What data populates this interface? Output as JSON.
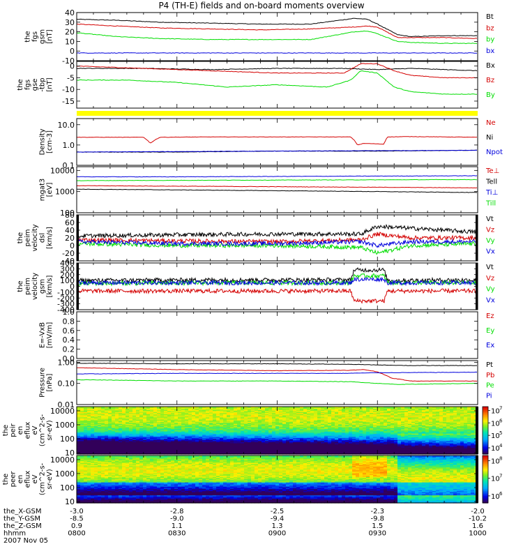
{
  "title": "P4 (TH-E) fields and on-board moments overview",
  "chart_data": [
    {
      "type": "line",
      "id": "gsm",
      "ylabel": [
        "the",
        "fgs",
        "gsm",
        "[nT]"
      ],
      "ylim": [
        -10,
        40
      ],
      "yticks": [
        {
          "v": 40,
          "label": "40"
        },
        {
          "v": 30,
          "label": "30"
        },
        {
          "v": 20,
          "label": "20"
        },
        {
          "v": 10,
          "label": "10"
        },
        {
          "v": 0,
          "label": "0"
        },
        {
          "v": -10,
          "label": "-10"
        }
      ],
      "series": [
        {
          "name": "Bt",
          "color": "#000000",
          "x": [
            0,
            12,
            25,
            40,
            55,
            70,
            83,
            87,
            90,
            96,
            100,
            110,
            120
          ],
          "values": [
            33,
            32,
            30,
            29,
            28,
            28,
            34,
            33,
            28,
            17,
            15,
            16,
            16
          ]
        },
        {
          "name": "bz",
          "color": "#d40000",
          "x": [
            0,
            12,
            25,
            40,
            55,
            70,
            83,
            87,
            90,
            96,
            100,
            110,
            120
          ],
          "values": [
            28,
            26,
            24,
            23,
            22,
            23,
            25,
            26,
            25,
            14,
            14,
            14,
            13
          ]
        },
        {
          "name": "by",
          "color": "#00dd00",
          "x": [
            0,
            12,
            25,
            40,
            55,
            70,
            83,
            87,
            90,
            96,
            100,
            110,
            120
          ],
          "values": [
            19,
            15,
            13,
            12,
            12,
            12,
            20,
            21,
            18,
            10,
            9,
            8,
            8
          ]
        },
        {
          "name": "bx",
          "color": "#0000dd",
          "x": [
            0,
            30,
            60,
            90,
            120
          ],
          "values": [
            -2,
            -2,
            -2,
            -2,
            -2
          ]
        }
      ]
    },
    {
      "type": "line",
      "id": "dsl",
      "ylabel": [
        "the",
        "fgs",
        "gse",
        "-tbp",
        "[nT]"
      ],
      "ylim": [
        -18,
        2
      ],
      "yticks": [
        {
          "v": 0,
          "label": "0"
        },
        {
          "v": -5,
          "label": "-5"
        },
        {
          "v": -10,
          "label": "-10"
        },
        {
          "v": -15,
          "label": "-15"
        }
      ],
      "series": [
        {
          "name": "Bx",
          "color": "#000000",
          "x": [
            0,
            20,
            40,
            60,
            80,
            90,
            100,
            120
          ],
          "values": [
            -1,
            -1,
            -1.5,
            -1,
            -1,
            -1.5,
            -1,
            -2
          ]
        },
        {
          "name": "Bz",
          "color": "#d40000",
          "x": [
            0,
            20,
            40,
            60,
            80,
            85,
            90,
            95,
            100,
            110,
            120
          ],
          "values": [
            0,
            -1,
            -2,
            -3,
            -3,
            1,
            1,
            -2,
            -4,
            -5,
            -5
          ]
        },
        {
          "name": "By",
          "color": "#00dd00",
          "x": [
            0,
            15,
            30,
            45,
            60,
            75,
            82,
            85,
            90,
            95,
            100,
            110,
            120
          ],
          "values": [
            -6,
            -6,
            -7,
            -9,
            -8,
            -9,
            -6,
            -2,
            -3,
            -9,
            -11,
            -12,
            -12
          ]
        }
      ]
    },
    {
      "type": "line",
      "id": "density",
      "scale": "log",
      "ylabel": [
        "Density",
        "[cm-3]"
      ],
      "ylim": [
        0.1,
        20
      ],
      "yticks": [
        {
          "v": 10,
          "label": "10.0"
        },
        {
          "v": 1,
          "label": "1.0"
        },
        {
          "v": 0.1,
          "label": "0.1"
        }
      ],
      "series": [
        {
          "name": "Ne",
          "color": "#d40000",
          "x": [
            0,
            20,
            22,
            25,
            40,
            60,
            82,
            84,
            86,
            92,
            93,
            100,
            120
          ],
          "values": [
            2.4,
            2.4,
            1.2,
            2.4,
            2.5,
            2.5,
            2.5,
            1.0,
            1.2,
            1.1,
            2.5,
            2.6,
            2.4
          ]
        },
        {
          "name": "Ni",
          "color": "#000000",
          "x": [
            0,
            30,
            60,
            90,
            120
          ],
          "values": [
            0.45,
            0.45,
            0.5,
            0.5,
            0.55
          ]
        },
        {
          "name": "Npot",
          "color": "#0000dd",
          "x": [
            0,
            60,
            120
          ],
          "values": [
            0.45,
            0.5,
            0.55
          ]
        }
      ]
    },
    {
      "type": "line",
      "id": "temperature",
      "scale": "log",
      "ylabel": [
        "mgat3",
        "[eV]"
      ],
      "ylim": [
        100,
        15000
      ],
      "yticks": [
        {
          "v": 10000,
          "label": "10000"
        },
        {
          "v": 1000,
          "label": "1000"
        },
        {
          "v": 100,
          "label": "100"
        }
      ],
      "series": [
        {
          "name": "Te⊥",
          "color": "#d40000",
          "x": [
            0,
            30,
            60,
            90,
            120
          ],
          "values": [
            1900,
            1800,
            1700,
            1600,
            1500
          ]
        },
        {
          "name": "Tell",
          "color": "#000000",
          "x": [
            0,
            30,
            60,
            90,
            120
          ],
          "values": [
            1300,
            1200,
            1100,
            1000,
            900
          ]
        },
        {
          "name": "Ti⊥",
          "color": "#0000dd",
          "x": [
            0,
            30,
            60,
            90,
            120
          ],
          "values": [
            5000,
            5000,
            5200,
            5400,
            5600
          ]
        },
        {
          "name": "Till",
          "color": "#00dd00",
          "x": [
            0,
            30,
            60,
            90,
            120
          ],
          "values": [
            3300,
            3400,
            3500,
            3600,
            3700
          ]
        }
      ]
    },
    {
      "type": "line",
      "id": "velocity-dsl",
      "noisy": true,
      "ylabel": [
        "the",
        "peim",
        "velocity",
        "dsl",
        "[km/s]"
      ],
      "ylim": [
        -40,
        80
      ],
      "yticks": [
        {
          "v": 80,
          "label": "80"
        },
        {
          "v": 60,
          "label": "60"
        },
        {
          "v": 40,
          "label": "40"
        },
        {
          "v": 20,
          "label": "20"
        },
        {
          "v": 0,
          "label": "0"
        },
        {
          "v": -20,
          "label": "-20"
        },
        {
          "v": -40,
          "label": "-40"
        }
      ],
      "series": [
        {
          "name": "Vt",
          "color": "#000000",
          "x": [
            0,
            30,
            60,
            85,
            90,
            100,
            120
          ],
          "values": [
            25,
            28,
            30,
            30,
            50,
            45,
            35
          ]
        },
        {
          "name": "Vz",
          "color": "#d40000",
          "x": [
            0,
            30,
            60,
            85,
            90,
            100,
            120
          ],
          "values": [
            15,
            12,
            10,
            15,
            30,
            20,
            20
          ]
        },
        {
          "name": "Vy",
          "color": "#00dd00",
          "x": [
            0,
            30,
            60,
            85,
            90,
            100,
            120
          ],
          "values": [
            5,
            0,
            0,
            -5,
            -20,
            0,
            5
          ]
        },
        {
          "name": "Vx",
          "color": "#0000dd",
          "x": [
            0,
            30,
            60,
            85,
            90,
            100,
            120
          ],
          "values": [
            10,
            5,
            5,
            10,
            0,
            10,
            10
          ]
        }
      ]
    },
    {
      "type": "line",
      "id": "velocity-gsm",
      "noisy": true,
      "ylabel": [
        "the",
        "peim",
        "velocity",
        "gsm",
        "[km/s]"
      ],
      "ylim": [
        -400,
        400
      ],
      "yticks": [
        {
          "v": 400,
          "label": "400"
        },
        {
          "v": 300,
          "label": "300"
        },
        {
          "v": 200,
          "label": "200"
        },
        {
          "v": 100,
          "label": "100"
        },
        {
          "v": 0,
          "label": "0"
        },
        {
          "v": -100,
          "label": "-100"
        },
        {
          "v": -200,
          "label": "-200"
        },
        {
          "v": -300,
          "label": "-300"
        },
        {
          "v": -400,
          "label": "-400"
        }
      ],
      "series": [
        {
          "name": "Vt",
          "color": "#000000",
          "x": [
            0,
            40,
            82,
            83,
            92,
            93,
            120
          ],
          "values": [
            100,
            110,
            110,
            280,
            280,
            100,
            110
          ]
        },
        {
          "name": "Vz",
          "color": "#d40000",
          "x": [
            0,
            40,
            82,
            83,
            92,
            93,
            120
          ],
          "values": [
            -80,
            -80,
            -80,
            -250,
            -250,
            -80,
            -80
          ]
        },
        {
          "name": "Vy",
          "color": "#00dd00",
          "x": [
            0,
            40,
            82,
            83,
            92,
            93,
            120
          ],
          "values": [
            50,
            60,
            60,
            180,
            180,
            60,
            60
          ]
        },
        {
          "name": "Vx",
          "color": "#0000dd",
          "x": [
            0,
            40,
            82,
            83,
            92,
            93,
            120
          ],
          "values": [
            60,
            60,
            60,
            120,
            120,
            60,
            60
          ]
        }
      ]
    },
    {
      "type": "line",
      "id": "efield",
      "ylabel": [
        "E=-VxB",
        "[mV/m]"
      ],
      "ylim": [
        0,
        1
      ],
      "yticks": [
        {
          "v": 1,
          "label": "1.0"
        },
        {
          "v": 0.8,
          "label": "0.8"
        },
        {
          "v": 0.6,
          "label": "0.6"
        },
        {
          "v": 0.4,
          "label": "0.4"
        },
        {
          "v": 0.2,
          "label": "0.2"
        },
        {
          "v": 0,
          "label": "0.0"
        }
      ],
      "series": [
        {
          "name": "Ez",
          "color": "#d40000",
          "x": [],
          "values": []
        },
        {
          "name": "Ey",
          "color": "#00dd00",
          "x": [],
          "values": []
        },
        {
          "name": "Ex",
          "color": "#0000dd",
          "x": [],
          "values": []
        }
      ]
    },
    {
      "type": "line",
      "id": "pressure",
      "scale": "log",
      "ylabel": [
        "Pressure",
        "[nPa]"
      ],
      "ylim": [
        0.01,
        1.2
      ],
      "yticks": [
        {
          "v": 1,
          "label": "1.00"
        },
        {
          "v": 0.1,
          "label": "0.10"
        },
        {
          "v": 0.01,
          "label": "0.01"
        }
      ],
      "series": [
        {
          "name": "Pt",
          "color": "#000000",
          "x": [
            0,
            30,
            60,
            82,
            90,
            100,
            120
          ],
          "values": [
            0.9,
            0.85,
            0.85,
            0.8,
            0.75,
            0.7,
            0.7
          ]
        },
        {
          "name": "Pb",
          "color": "#d40000",
          "x": [
            0,
            30,
            60,
            82,
            86,
            90,
            94,
            100,
            120
          ],
          "values": [
            0.55,
            0.45,
            0.4,
            0.42,
            0.45,
            0.35,
            0.18,
            0.13,
            0.13
          ]
        },
        {
          "name": "Pe",
          "color": "#00dd00",
          "x": [
            0,
            30,
            60,
            82,
            90,
            96,
            120
          ],
          "values": [
            0.15,
            0.13,
            0.13,
            0.12,
            0.1,
            0.09,
            0.1
          ]
        },
        {
          "name": "Pi",
          "color": "#0000dd",
          "x": [
            0,
            30,
            60,
            80,
            90,
            120
          ],
          "values": [
            0.28,
            0.3,
            0.3,
            0.3,
            0.32,
            0.34
          ]
        }
      ]
    },
    {
      "type": "heatmap",
      "id": "ion-spectrogram",
      "ylabel": [
        "the",
        "peir",
        "en",
        "eflux",
        "eV",
        "(cm^2-s-",
        "sr-eV)"
      ],
      "ylim": [
        8,
        20000
      ],
      "yticks": [
        {
          "v": 10000,
          "label": "10000"
        },
        {
          "v": 1000,
          "label": "1000"
        },
        {
          "v": 100,
          "label": "100"
        },
        {
          "v": 10,
          "label": "10"
        }
      ],
      "colorbar": {
        "ticks": [
          {
            "exp": 7,
            "label": "7"
          },
          {
            "exp": 6,
            "label": "6"
          },
          {
            "exp": 5,
            "label": "5"
          },
          {
            "exp": 4,
            "label": "4"
          }
        ],
        "range": [
          3.5,
          7.3
        ]
      }
    },
    {
      "type": "heatmap",
      "id": "electron-spectrogram",
      "ylabel": [
        "the",
        "peer",
        "en",
        "eflux",
        "eV",
        "(cm^2-s-",
        "sr-eV)"
      ],
      "ylim": [
        8,
        20000
      ],
      "yticks": [
        {
          "v": 10000,
          "label": "10000"
        },
        {
          "v": 1000,
          "label": "1000"
        },
        {
          "v": 100,
          "label": "100"
        },
        {
          "v": 10,
          "label": "10"
        }
      ],
      "colorbar": {
        "ticks": [
          {
            "exp": 8,
            "label": "8"
          },
          {
            "exp": 7,
            "label": "7"
          },
          {
            "exp": 6,
            "label": "6"
          }
        ],
        "range": [
          5.6,
          8.3
        ]
      }
    }
  ],
  "xaxis": {
    "range": [
      0,
      120
    ],
    "rows": [
      {
        "label": "the_X-GSM",
        "values": [
          "-3.0",
          "-2.8",
          "-2.5",
          "-2.3",
          "-2.0"
        ]
      },
      {
        "label": "the_Y-GSM",
        "values": [
          "-8.5",
          "-9.0",
          "-9.4",
          "-9.8",
          "-10.2"
        ]
      },
      {
        "label": "the_Z-GSM",
        "values": [
          "0.9",
          "1.1",
          "1.3",
          "1.5",
          "1.6"
        ]
      },
      {
        "label": "hhmm",
        "values": [
          "0800",
          "0830",
          "0900",
          "0930",
          "1000"
        ]
      }
    ],
    "tick_positions": [
      0,
      30,
      60,
      90,
      120
    ],
    "date": "2007 Nov 05"
  }
}
